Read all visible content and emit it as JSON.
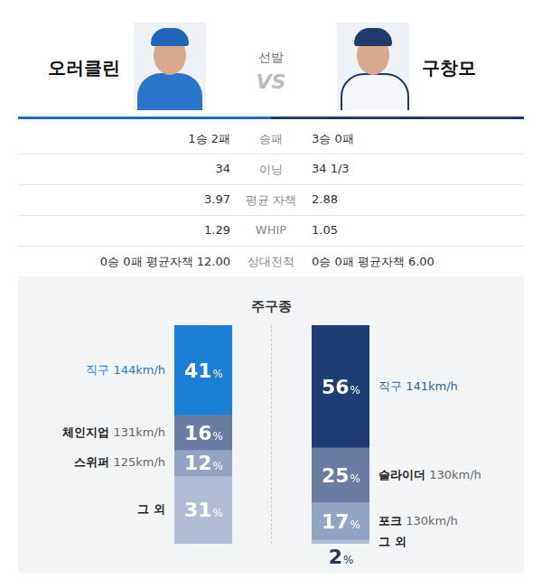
{
  "header": {
    "role": "선발",
    "vs": "VS",
    "left": {
      "name": "오러클린"
    },
    "right": {
      "name": "구창모"
    }
  },
  "table": {
    "rows": [
      {
        "label": "승패",
        "left": "1승 2패",
        "right": "3승 0패"
      },
      {
        "label": "이닝",
        "left": "34",
        "right": "34 1/3"
      },
      {
        "label": "평균 자책",
        "left": "3.97",
        "right": "2.88"
      },
      {
        "label": "WHIP",
        "left": "1.29",
        "right": "1.05"
      },
      {
        "label": "상대전적",
        "left": "0승 0패 평균자책 12.00",
        "right": "0승 0패 평균자책 6.00"
      }
    ]
  },
  "section_title": "주구종",
  "chart_data": [
    {
      "type": "bar",
      "stacked": true,
      "categories": [
        "직구",
        "체인지업",
        "스위퍼",
        "그 외"
      ],
      "values": [
        41,
        16,
        12,
        31
      ],
      "value_labels": [
        "41%",
        "16%",
        "12%",
        "31%"
      ],
      "speeds": [
        "144km/h",
        "131km/h",
        "125km/h",
        null
      ],
      "colors": [
        "#1a7fd4",
        "#6b7ca3",
        "#93a3c2",
        "#b0bdd4"
      ],
      "ylim": [
        0,
        100
      ],
      "grid": false,
      "tick_labels": false,
      "data_labels": true
    },
    {
      "type": "bar",
      "stacked": true,
      "categories": [
        "직구",
        "슬라이더",
        "포크",
        "그 외"
      ],
      "values": [
        56,
        25,
        17,
        2
      ],
      "value_labels": [
        "56%",
        "25%",
        "17%",
        "2%"
      ],
      "speeds": [
        "141km/h",
        "130km/h",
        "130km/h",
        null
      ],
      "colors": [
        "#1e3d74",
        "#6b7ca3",
        "#93a3c2",
        "#b0bdd4"
      ],
      "ylim": [
        0,
        100
      ],
      "grid": false,
      "tick_labels": false,
      "data_labels": true
    }
  ]
}
